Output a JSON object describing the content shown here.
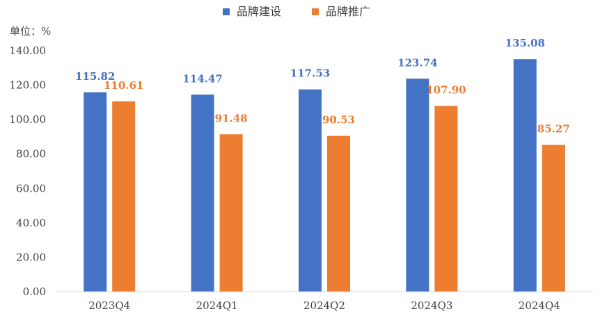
{
  "chart_data": {
    "type": "bar",
    "unit_label": "单位：%",
    "categories": [
      "2023Q4",
      "2024Q1",
      "2024Q2",
      "2024Q3",
      "2024Q4"
    ],
    "series": [
      {
        "name": "品牌建设",
        "color": "#4472C4",
        "values": [
          115.82,
          114.47,
          117.53,
          123.74,
          135.08
        ]
      },
      {
        "name": "品牌推广",
        "color": "#ED7D31",
        "values": [
          110.61,
          91.48,
          90.53,
          107.9,
          85.27
        ]
      }
    ],
    "data_labels": [
      [
        "115.82",
        "114.47",
        "117.53",
        "123.74",
        "135.08"
      ],
      [
        "110.61",
        "91.48",
        "90.53",
        "107.90",
        "85.27"
      ]
    ],
    "yticks": [
      "0.00",
      "20.00",
      "40.00",
      "60.00",
      "80.00",
      "100.00",
      "120.00",
      "140.00"
    ],
    "ylim": [
      0,
      140
    ],
    "legend_position": "top-center",
    "grid": false
  }
}
